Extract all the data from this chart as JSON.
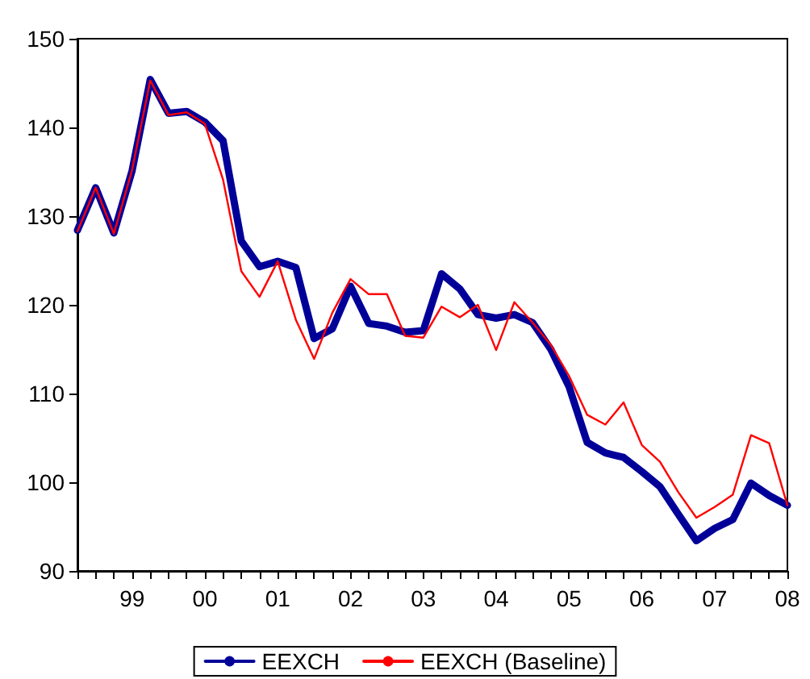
{
  "chart_data": {
    "type": "line",
    "categories": [
      null,
      null,
      null,
      "99",
      null,
      null,
      null,
      "00",
      null,
      null,
      null,
      "01",
      null,
      null,
      null,
      "02",
      null,
      null,
      null,
      "03",
      null,
      null,
      null,
      "04",
      null,
      null,
      null,
      "05",
      null,
      null,
      null,
      "06",
      null,
      null,
      null,
      "07",
      null,
      null,
      null,
      "08"
    ],
    "series": [
      {
        "name": "EEXCH",
        "color": "#000099",
        "values": [
          128.4,
          133.2,
          128.1,
          135.1,
          145.4,
          141.6,
          141.8,
          140.6,
          138.5,
          127.2,
          124.3,
          124.9,
          124.2,
          116.2,
          117.3,
          122.1,
          117.9,
          117.6,
          116.9,
          117.1,
          123.5,
          121.8,
          118.9,
          118.5,
          118.9,
          118.0,
          115.0,
          110.8,
          104.5,
          103.3,
          102.8,
          101.2,
          99.5,
          96.4,
          93.4,
          94.8,
          95.8,
          99.9,
          98.5,
          97.4
        ]
      },
      {
        "name": "EEXCH (Baseline)",
        "color": "#ff0000",
        "values": [
          128.3,
          133.2,
          128.0,
          135.2,
          145.3,
          141.4,
          141.7,
          140.4,
          134.1,
          123.8,
          120.9,
          124.9,
          118.3,
          113.9,
          119.1,
          122.9,
          121.2,
          121.2,
          116.5,
          116.3,
          119.8,
          118.6,
          120.0,
          114.9,
          120.3,
          118.0,
          115.5,
          112.0,
          107.6,
          106.5,
          109.0,
          104.2,
          102.3,
          98.9,
          96.0,
          97.2,
          98.6,
          105.3,
          104.4,
          97.4
        ]
      }
    ],
    "ylim": [
      90,
      150
    ],
    "yticks": [
      90,
      100,
      110,
      120,
      130,
      140,
      150
    ],
    "grid": false,
    "legend": "bottom",
    "marker": "none",
    "line_style": "solid"
  }
}
